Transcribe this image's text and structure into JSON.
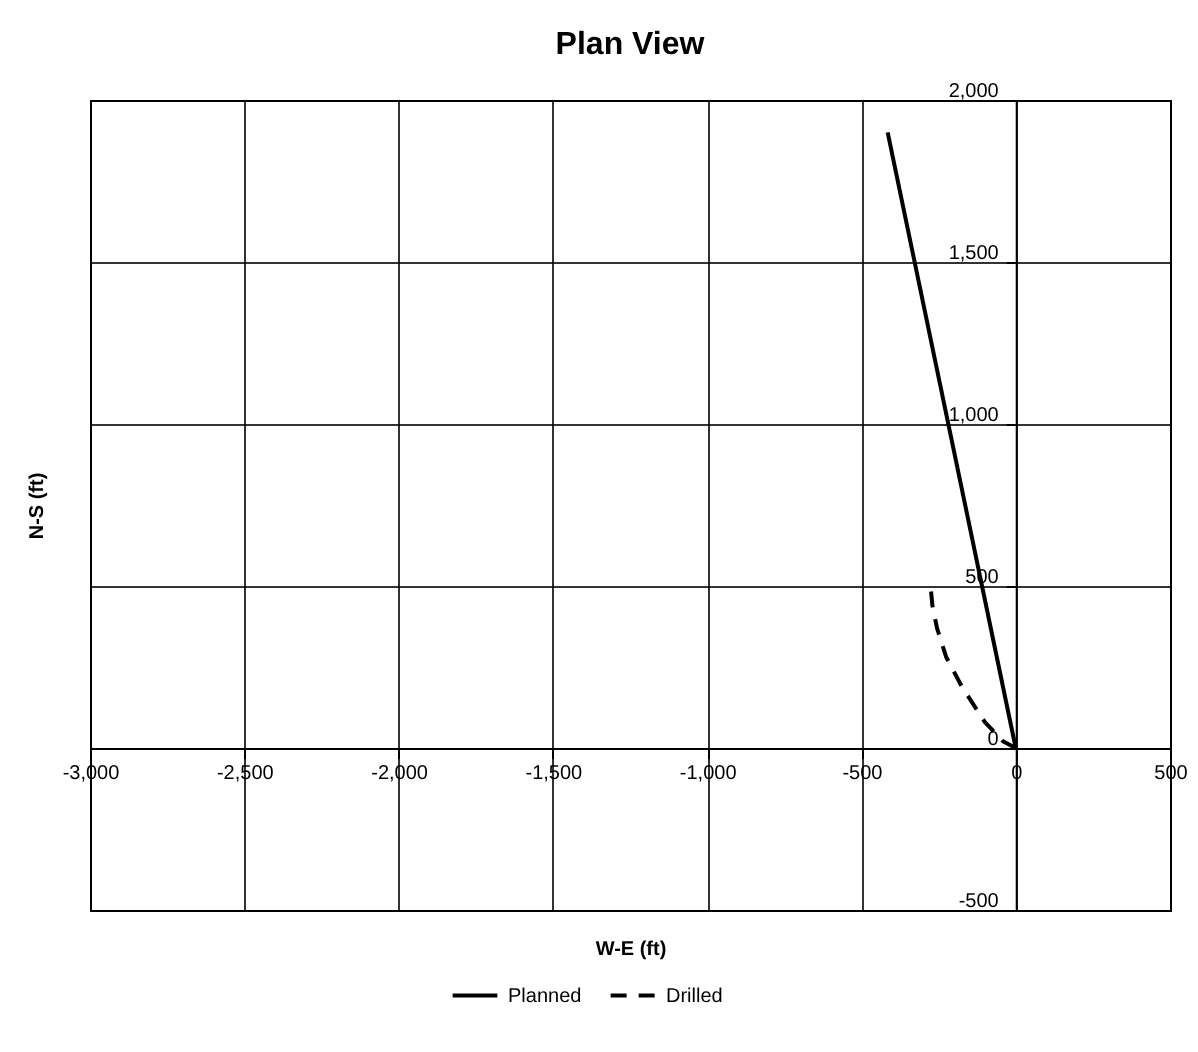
{
  "chart_data": {
    "type": "line",
    "title": "Plan View",
    "xlabel": "W-E (ft)",
    "ylabel": "N-S (ft)",
    "xlim": [
      -3000,
      500
    ],
    "xticks": [
      {
        "value": -3000,
        "label": "-3,000"
      },
      {
        "value": -2500,
        "label": "-2,500"
      },
      {
        "value": -2000,
        "label": "-2,000"
      },
      {
        "value": -1500,
        "label": "-1,500"
      },
      {
        "value": -1000,
        "label": "-1,000"
      },
      -500,
      0,
      500
    ],
    "ylim": [
      -500,
      2000
    ],
    "yticks": [
      -500,
      0,
      500,
      {
        "value": 1000,
        "label": "1,000"
      },
      {
        "value": 1500,
        "label": "1,500"
      },
      {
        "value": 2000,
        "label": "2,000"
      }
    ],
    "grid": true,
    "legend": "bottom",
    "marker": "none",
    "series": [
      {
        "name": "Planned",
        "color": "#000000",
        "line_style": "solid",
        "x": [
          0,
          -415
        ],
        "values": [
          0,
          1900
        ]
      },
      {
        "name": "Drilled",
        "color": "#000000",
        "line_style": "dashed",
        "x": [
          0,
          -40,
          -100,
          -175,
          -225,
          -255,
          -270,
          -275
        ],
        "values": [
          0,
          20,
          80,
          190,
          280,
          370,
          440,
          490
        ]
      }
    ]
  }
}
